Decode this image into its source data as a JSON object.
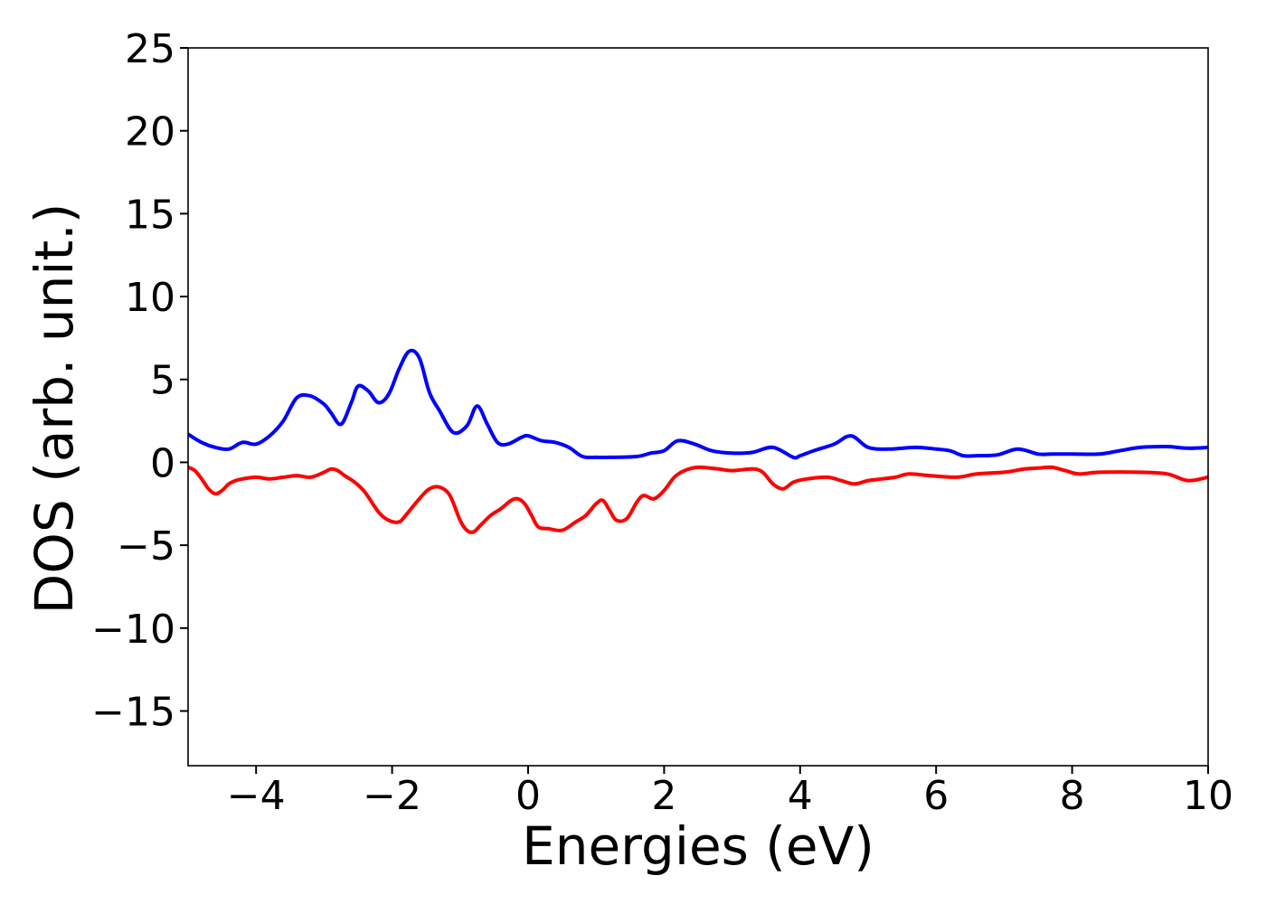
{
  "chart_data": {
    "type": "line",
    "title": "",
    "xlabel": "Energies (eV)",
    "ylabel": "DOS (arb. unit.)",
    "xlim": [
      -5,
      10
    ],
    "ylim": [
      -18.3,
      25
    ],
    "xticks": [
      -4,
      -2,
      0,
      2,
      4,
      6,
      8,
      10
    ],
    "xtick_labels": [
      "−4",
      "−2",
      "0",
      "2",
      "4",
      "6",
      "8",
      "10"
    ],
    "yticks": [
      -15,
      -10,
      -5,
      0,
      5,
      10,
      15,
      20,
      25
    ],
    "ytick_labels": [
      "−15",
      "−10",
      "−5",
      "0",
      "5",
      "10",
      "15",
      "20",
      "25"
    ],
    "grid": false,
    "legend": "none",
    "series": [
      {
        "color": "#0000ff",
        "x": [
          -5.0,
          -4.8,
          -4.6,
          -4.4,
          -4.2,
          -4.0,
          -3.8,
          -3.6,
          -3.4,
          -3.2,
          -3.0,
          -2.9,
          -2.75,
          -2.6,
          -2.5,
          -2.35,
          -2.2,
          -2.05,
          -1.9,
          -1.75,
          -1.6,
          -1.45,
          -1.3,
          -1.1,
          -0.9,
          -0.75,
          -0.6,
          -0.45,
          -0.3,
          -0.1,
          0.0,
          0.2,
          0.4,
          0.6,
          0.8,
          1.0,
          1.2,
          1.6,
          1.8,
          2.0,
          2.2,
          2.45,
          2.7,
          3.0,
          3.3,
          3.6,
          3.9,
          4.0,
          4.2,
          4.5,
          4.75,
          5.0,
          5.3,
          5.7,
          6.0,
          6.2,
          6.4,
          6.6,
          6.9,
          7.2,
          7.5,
          7.7,
          8.0,
          8.4,
          8.7,
          9.0,
          9.4,
          9.7,
          10.0
        ],
        "y": [
          1.7,
          1.2,
          0.9,
          0.8,
          1.2,
          1.1,
          1.6,
          2.5,
          3.9,
          4.0,
          3.5,
          3.0,
          2.3,
          3.6,
          4.6,
          4.3,
          3.6,
          4.1,
          5.6,
          6.7,
          6.3,
          4.2,
          3.1,
          1.8,
          2.2,
          3.4,
          2.3,
          1.2,
          1.1,
          1.5,
          1.6,
          1.3,
          1.2,
          0.9,
          0.35,
          0.3,
          0.3,
          0.35,
          0.55,
          0.7,
          1.3,
          1.1,
          0.7,
          0.55,
          0.6,
          0.9,
          0.3,
          0.4,
          0.7,
          1.1,
          1.6,
          0.9,
          0.8,
          0.9,
          0.8,
          0.7,
          0.4,
          0.4,
          0.45,
          0.8,
          0.5,
          0.5,
          0.5,
          0.5,
          0.7,
          0.9,
          0.95,
          0.85,
          0.9
        ]
      },
      {
        "color": "#ff0000",
        "x": [
          -5.0,
          -4.9,
          -4.8,
          -4.7,
          -4.6,
          -4.5,
          -4.4,
          -4.3,
          -4.2,
          -4.0,
          -3.8,
          -3.6,
          -3.4,
          -3.2,
          -3.0,
          -2.9,
          -2.8,
          -2.7,
          -2.55,
          -2.4,
          -2.2,
          -2.05,
          -1.9,
          -1.8,
          -1.6,
          -1.45,
          -1.3,
          -1.15,
          -1.0,
          -0.9,
          -0.8,
          -0.7,
          -0.55,
          -0.4,
          -0.25,
          -0.15,
          -0.05,
          0.05,
          0.15,
          0.3,
          0.5,
          0.7,
          0.85,
          1.0,
          1.1,
          1.2,
          1.3,
          1.45,
          1.6,
          1.7,
          1.85,
          2.0,
          2.15,
          2.3,
          2.5,
          2.8,
          3.0,
          3.3,
          3.45,
          3.6,
          3.75,
          3.9,
          4.1,
          4.4,
          4.6,
          4.8,
          5.0,
          5.2,
          5.4,
          5.6,
          5.9,
          6.3,
          6.6,
          7.0,
          7.3,
          7.5,
          7.7,
          7.9,
          8.1,
          8.4,
          9.0,
          9.4,
          9.7,
          10.0
        ],
        "y": [
          -0.3,
          -0.5,
          -1.0,
          -1.6,
          -1.9,
          -1.7,
          -1.3,
          -1.1,
          -1.0,
          -0.9,
          -1.0,
          -0.9,
          -0.8,
          -0.9,
          -0.6,
          -0.4,
          -0.5,
          -0.8,
          -1.2,
          -1.8,
          -3.0,
          -3.5,
          -3.6,
          -3.2,
          -2.2,
          -1.6,
          -1.5,
          -2.0,
          -3.5,
          -4.1,
          -4.2,
          -3.8,
          -3.2,
          -2.8,
          -2.3,
          -2.2,
          -2.5,
          -3.2,
          -3.9,
          -4.0,
          -4.1,
          -3.6,
          -3.2,
          -2.5,
          -2.3,
          -2.9,
          -3.5,
          -3.4,
          -2.4,
          -2.0,
          -2.2,
          -1.7,
          -0.9,
          -0.5,
          -0.3,
          -0.4,
          -0.5,
          -0.4,
          -0.6,
          -1.3,
          -1.6,
          -1.2,
          -1.0,
          -0.9,
          -1.1,
          -1.3,
          -1.1,
          -1.0,
          -0.9,
          -0.7,
          -0.8,
          -0.9,
          -0.7,
          -0.6,
          -0.4,
          -0.35,
          -0.3,
          -0.5,
          -0.7,
          -0.6,
          -0.6,
          -0.7,
          -1.1,
          -0.9
        ]
      }
    ]
  }
}
